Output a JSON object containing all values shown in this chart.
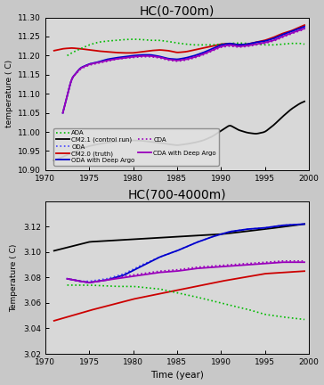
{
  "title_upper": "HC(0-700m)",
  "title_lower": "HC(700-4000m)",
  "xlabel": "Time (year)",
  "ylabel_upper": "temperature ( C)",
  "ylabel_lower": "Temperature ( C)",
  "xlim": [
    1970,
    2000
  ],
  "ylim_upper": [
    10.9,
    11.3
  ],
  "ylim_lower": [
    3.02,
    3.14
  ],
  "xticks": [
    1970,
    1975,
    1980,
    1985,
    1990,
    1995,
    2000
  ],
  "yticks_upper": [
    10.9,
    10.95,
    11.0,
    11.05,
    11.1,
    11.15,
    11.2,
    11.25,
    11.3
  ],
  "yticks_lower": [
    3.02,
    3.04,
    3.06,
    3.08,
    3.1,
    3.12
  ],
  "background_color": "#d8d8d8",
  "fig_facecolor": "#c8c8c8",
  "upper_cm21_pts_x": [
    1971,
    1972,
    1973,
    1974,
    1975,
    1976,
    1977,
    1978,
    1979,
    1980,
    1981,
    1982,
    1983,
    1984,
    1985,
    1986,
    1987,
    1988,
    1989,
    1990,
    1991,
    1992,
    1993,
    1994,
    1995,
    1996,
    1997,
    1998,
    1999,
    1999.5
  ],
  "upper_cm21_pts_y": [
    10.925,
    10.935,
    10.945,
    10.955,
    10.963,
    10.968,
    10.972,
    10.975,
    10.977,
    10.978,
    10.977,
    10.974,
    10.972,
    10.968,
    10.965,
    10.968,
    10.972,
    10.978,
    10.988,
    11.003,
    11.018,
    11.005,
    10.998,
    10.995,
    11.0,
    11.018,
    11.04,
    11.06,
    11.075,
    11.08
  ],
  "upper_cm20_pts_x": [
    1971,
    1972,
    1973,
    1974,
    1975,
    1976,
    1977,
    1978,
    1979,
    1980,
    1981,
    1982,
    1983,
    1984,
    1985,
    1986,
    1987,
    1988,
    1989,
    1990,
    1991,
    1992,
    1993,
    1994,
    1995,
    1996,
    1997,
    1998,
    1999,
    1999.5
  ],
  "upper_cm20_pts_y": [
    11.213,
    11.218,
    11.22,
    11.218,
    11.215,
    11.212,
    11.21,
    11.208,
    11.207,
    11.207,
    11.21,
    11.213,
    11.215,
    11.213,
    11.208,
    11.21,
    11.215,
    11.22,
    11.225,
    11.23,
    11.232,
    11.228,
    11.23,
    11.235,
    11.24,
    11.248,
    11.258,
    11.265,
    11.275,
    11.28
  ],
  "upper_ada_pts_x": [
    1972.5,
    1973,
    1974,
    1975,
    1976,
    1977,
    1978,
    1979,
    1980,
    1981,
    1982,
    1983,
    1984,
    1985,
    1986,
    1987,
    1988,
    1989,
    1990,
    1991,
    1992,
    1993,
    1994,
    1995,
    1996,
    1997,
    1998,
    1999,
    1999.5
  ],
  "upper_ada_pts_y": [
    11.2,
    11.207,
    11.218,
    11.228,
    11.235,
    11.238,
    11.24,
    11.242,
    11.243,
    11.242,
    11.24,
    11.24,
    11.237,
    11.233,
    11.23,
    11.228,
    11.228,
    11.228,
    11.23,
    11.232,
    11.233,
    11.232,
    11.23,
    11.228,
    11.228,
    11.23,
    11.232,
    11.232,
    11.23
  ],
  "upper_oda_pts_x": [
    1972,
    1972.5,
    1973,
    1974,
    1975,
    1976,
    1977,
    1978,
    1979,
    1980,
    1981,
    1982,
    1983,
    1984,
    1985,
    1986,
    1987,
    1988,
    1989,
    1990,
    1991,
    1992,
    1993,
    1994,
    1995,
    1996,
    1997,
    1998,
    1999,
    1999.5
  ],
  "upper_oda_pts_y": [
    11.05,
    11.095,
    11.14,
    11.168,
    11.178,
    11.183,
    11.188,
    11.192,
    11.195,
    11.197,
    11.2,
    11.2,
    11.196,
    11.19,
    11.188,
    11.192,
    11.197,
    11.205,
    11.215,
    11.225,
    11.228,
    11.225,
    11.228,
    11.232,
    11.235,
    11.242,
    11.252,
    11.26,
    11.268,
    11.272
  ],
  "upper_oda_deep_pts_x": [
    1972,
    1972.5,
    1973,
    1974,
    1975,
    1976,
    1977,
    1978,
    1979,
    1980,
    1981,
    1982,
    1983,
    1984,
    1985,
    1986,
    1987,
    1988,
    1989,
    1990,
    1991,
    1992,
    1993,
    1994,
    1995,
    1996,
    1997,
    1998,
    1999,
    1999.5
  ],
  "upper_oda_deep_pts_y": [
    11.05,
    11.095,
    11.14,
    11.168,
    11.178,
    11.183,
    11.19,
    11.194,
    11.197,
    11.2,
    11.202,
    11.202,
    11.198,
    11.192,
    11.19,
    11.194,
    11.2,
    11.208,
    11.218,
    11.228,
    11.232,
    11.228,
    11.23,
    11.235,
    11.238,
    11.245,
    11.255,
    11.263,
    11.272,
    11.276
  ],
  "upper_cda_pts_x": [
    1972,
    1972.5,
    1973,
    1974,
    1975,
    1976,
    1977,
    1978,
    1979,
    1980,
    1981,
    1982,
    1983,
    1984,
    1985,
    1986,
    1987,
    1988,
    1989,
    1990,
    1991,
    1992,
    1993,
    1994,
    1995,
    1996,
    1997,
    1998,
    1999,
    1999.5
  ],
  "upper_cda_pts_y": [
    11.05,
    11.095,
    11.14,
    11.165,
    11.175,
    11.18,
    11.185,
    11.19,
    11.193,
    11.195,
    11.197,
    11.197,
    11.194,
    11.188,
    11.185,
    11.188,
    11.194,
    11.202,
    11.212,
    11.222,
    11.225,
    11.222,
    11.224,
    11.228,
    11.232,
    11.238,
    11.248,
    11.257,
    11.265,
    11.269
  ],
  "upper_cda_deep_pts_x": [
    1972,
    1972.5,
    1973,
    1974,
    1975,
    1976,
    1977,
    1978,
    1979,
    1980,
    1981,
    1982,
    1983,
    1984,
    1985,
    1986,
    1987,
    1988,
    1989,
    1990,
    1991,
    1992,
    1993,
    1994,
    1995,
    1996,
    1997,
    1998,
    1999,
    1999.5
  ],
  "upper_cda_deep_pts_y": [
    11.05,
    11.095,
    11.14,
    11.167,
    11.177,
    11.182,
    11.187,
    11.191,
    11.194,
    11.197,
    11.199,
    11.199,
    11.196,
    11.19,
    11.187,
    11.19,
    11.196,
    11.204,
    11.214,
    11.224,
    11.228,
    11.224,
    11.226,
    11.23,
    11.234,
    11.24,
    11.25,
    11.259,
    11.267,
    11.271
  ],
  "lower_cm21_pts_x": [
    1971,
    1975,
    1980,
    1985,
    1990,
    1995,
    1999.5
  ],
  "lower_cm21_pts_y": [
    3.101,
    3.108,
    3.11,
    3.112,
    3.114,
    3.118,
    3.122
  ],
  "lower_cm20_pts_x": [
    1971,
    1975,
    1980,
    1985,
    1990,
    1995,
    1999.5
  ],
  "lower_cm20_pts_y": [
    3.046,
    3.054,
    3.063,
    3.07,
    3.077,
    3.083,
    3.085
  ],
  "lower_ada_pts_x": [
    1972.5,
    1975,
    1978,
    1980,
    1983,
    1985,
    1987,
    1990,
    1993,
    1995,
    1997,
    1999.5
  ],
  "lower_ada_pts_y": [
    3.074,
    3.074,
    3.073,
    3.073,
    3.071,
    3.068,
    3.065,
    3.06,
    3.055,
    3.051,
    3.049,
    3.047
  ],
  "lower_oda_pts_x": [
    1972.5,
    1974,
    1975,
    1977,
    1979,
    1981,
    1983,
    1985,
    1987,
    1989,
    1991,
    1993,
    1995,
    1997,
    1999.5
  ],
  "lower_oda_pts_y": [
    3.079,
    3.077,
    3.077,
    3.079,
    3.083,
    3.09,
    3.096,
    3.101,
    3.107,
    3.112,
    3.116,
    3.118,
    3.119,
    3.121,
    3.122
  ],
  "lower_oda_deep_pts_x": [
    1972.5,
    1974,
    1975,
    1977,
    1979,
    1981,
    1983,
    1985,
    1987,
    1989,
    1991,
    1993,
    1995,
    1997,
    1999.5
  ],
  "lower_oda_deep_pts_y": [
    3.079,
    3.077,
    3.076,
    3.078,
    3.082,
    3.089,
    3.096,
    3.101,
    3.107,
    3.112,
    3.116,
    3.118,
    3.119,
    3.121,
    3.122
  ],
  "lower_cda_pts_x": [
    1972.5,
    1974,
    1975,
    1977,
    1979,
    1981,
    1983,
    1985,
    1987,
    1989,
    1991,
    1993,
    1995,
    1997,
    1999.5
  ],
  "lower_cda_pts_y": [
    3.079,
    3.077,
    3.076,
    3.078,
    3.081,
    3.083,
    3.085,
    3.086,
    3.088,
    3.089,
    3.09,
    3.091,
    3.092,
    3.093,
    3.093
  ],
  "lower_cda_deep_pts_x": [
    1972.5,
    1974,
    1975,
    1977,
    1979,
    1981,
    1983,
    1985,
    1987,
    1989,
    1991,
    1993,
    1995,
    1997,
    1999.5
  ],
  "lower_cda_deep_pts_y": [
    3.079,
    3.077,
    3.076,
    3.078,
    3.08,
    3.082,
    3.084,
    3.085,
    3.087,
    3.088,
    3.089,
    3.09,
    3.091,
    3.092,
    3.092
  ]
}
